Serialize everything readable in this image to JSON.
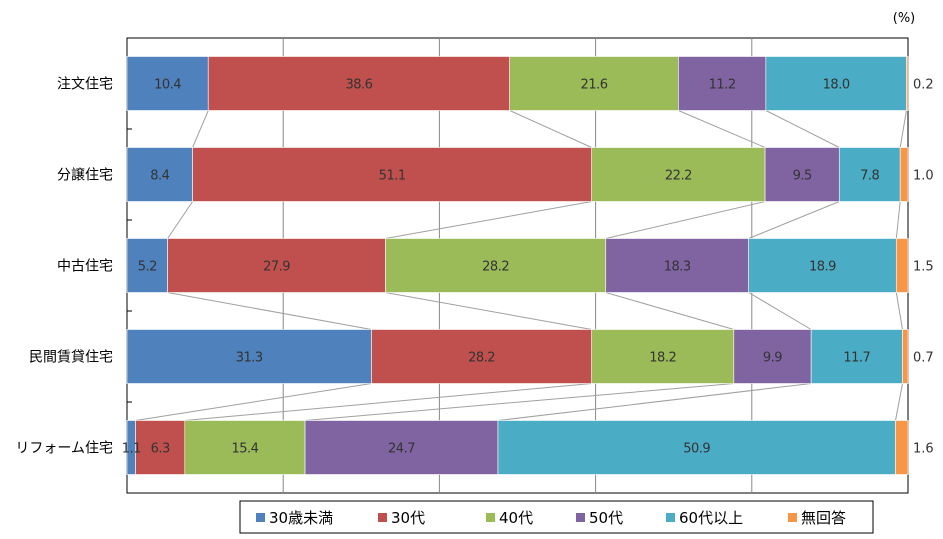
{
  "chart_data": {
    "type": "bar",
    "orientation": "horizontal",
    "stacked": "100%",
    "unit": "(%)",
    "categories": [
      "注文住宅",
      "分譲住宅",
      "中古住宅",
      "民間賃貸住宅",
      "リフォーム住宅"
    ],
    "series": [
      {
        "name": "30歳未満",
        "color": "#4f81bd",
        "values": [
          10.4,
          8.4,
          5.2,
          31.3,
          1.1
        ]
      },
      {
        "name": "30代",
        "color": "#c0504d",
        "values": [
          38.6,
          51.1,
          27.9,
          28.2,
          6.3
        ]
      },
      {
        "name": "40代",
        "color": "#9bbb59",
        "values": [
          21.6,
          22.2,
          28.2,
          18.2,
          15.4
        ]
      },
      {
        "name": "50代",
        "color": "#8064a2",
        "values": [
          11.2,
          9.5,
          18.3,
          9.9,
          24.7
        ]
      },
      {
        "name": "60代以上",
        "color": "#4bacc6",
        "values": [
          18.0,
          7.8,
          18.9,
          11.7,
          50.9
        ]
      },
      {
        "name": "無回答",
        "color": "#f79646",
        "values": [
          0.2,
          1.0,
          1.5,
          0.7,
          1.6
        ]
      }
    ],
    "xlim": [
      0,
      100
    ],
    "grid": true,
    "series_lines": true,
    "legend_position": "bottom"
  }
}
